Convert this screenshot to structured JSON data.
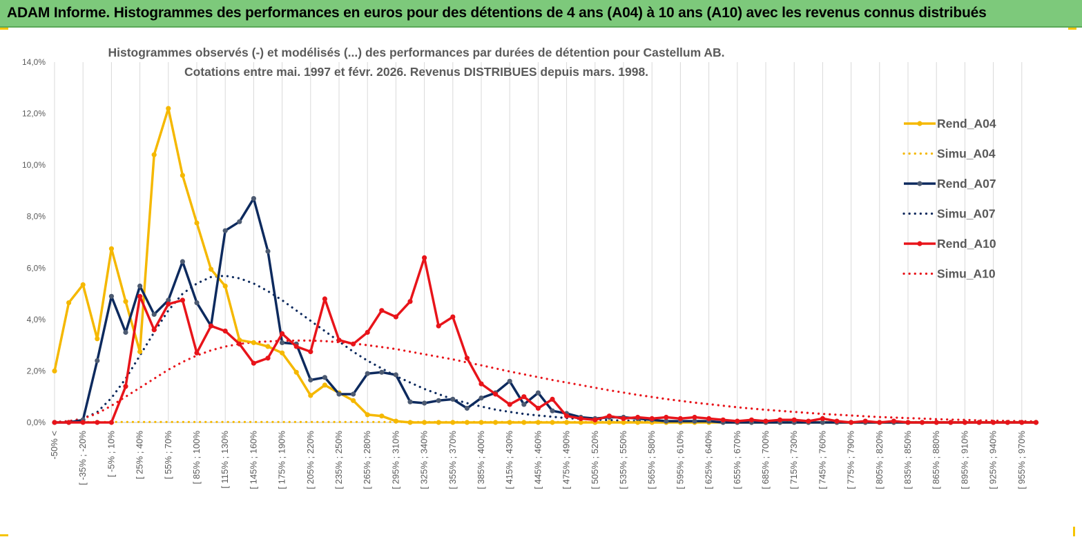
{
  "header": {
    "title": "ADAM Informe. Histogrammes des performances en euros pour des détentions de 4 ans (A04) à 10 ans (A10) avec les revenus connus distribués"
  },
  "chart_data": {
    "type": "line",
    "title_line1": "Histogrammes observés (-) et modélisés (...) des performances par durées de détention pour Castellum AB.",
    "title_line2": "Cotations entre mai. 1997 et févr. 2026. Revenus DISTRIBUES depuis mars. 1998.",
    "ylim": [
      0,
      14
    ],
    "yticks": [
      "0,0%",
      "2,0%",
      "4,0%",
      "6,0%",
      "8,0%",
      "10,0%",
      "12,0%",
      "14,0%"
    ],
    "grid": "vertical",
    "legend_position": "right",
    "x_tick_labels": [
      "-50% <",
      "[ -35% ; -20%",
      "[ -5% ; 10%",
      "[ 25% ; 40%",
      "[ 55% ; 70%",
      "[ 85% ; 100%",
      "[ 115% ; 130%",
      "[ 145% ; 160%",
      "[ 175% ; 190%",
      "[ 205% ; 220%",
      "[ 235% ; 250%",
      "[ 265% ; 280%",
      "[ 295% ; 310%",
      "[ 325% ; 340%",
      "[ 355% ; 370%",
      "[ 385% ; 400%",
      "[ 415% ; 430%",
      "[ 445% ; 460%",
      "[ 475% ; 490%",
      "[ 505% ; 520%",
      "[ 535% ; 550%",
      "[ 565% ; 580%",
      "[ 595% ; 610%",
      "[ 625% ; 640%",
      "[ 655% ; 670%",
      "[ 685% ; 700%",
      "[ 715% ; 730%",
      "[ 745% ; 760%",
      "[ 775% ; 790%",
      "[ 805% ; 820%",
      "[ 835% ; 850%",
      "[ 865% ; 880%",
      "[ 895% ; 910%",
      "[ 925% ; 940%",
      "[ 955% ; 970%"
    ],
    "num_points": 70,
    "series": [
      {
        "name": "Rend_A04",
        "style": "solid",
        "marker": true,
        "color": "#f5b800",
        "values": [
          2.0,
          4.65,
          5.35,
          3.25,
          6.75,
          4.7,
          2.75,
          10.4,
          12.2,
          9.6,
          7.75,
          5.95,
          5.3,
          3.2,
          3.1,
          2.95,
          2.7,
          1.95,
          1.05,
          1.45,
          1.15,
          0.85,
          0.3,
          0.25,
          0.05,
          0,
          0,
          0,
          0,
          0,
          0,
          0,
          0,
          0,
          0,
          0,
          0,
          0,
          0,
          0,
          0,
          0,
          0,
          0,
          0,
          0,
          0,
          0,
          0,
          0,
          0,
          0,
          0,
          0,
          0,
          0,
          0,
          0,
          0,
          0,
          0,
          0,
          0,
          0,
          0,
          0,
          0,
          0,
          0,
          0
        ]
      },
      {
        "name": "Simu_A04",
        "style": "dotted",
        "marker": false,
        "color": "#f5b800",
        "values": [
          0.02,
          0.02,
          0.02,
          0.02,
          0.02,
          0.02,
          0.02,
          0.02,
          0.02,
          0.02,
          0.02,
          0.02,
          0.02,
          0.02,
          0.02,
          0.02,
          0.02,
          0.02,
          0.02,
          0.02,
          0.02,
          0.02,
          0.02,
          0.02,
          0.02,
          0.02,
          0.02,
          0.02,
          0.02,
          0.02,
          0.02,
          0.02,
          0.02,
          0.02,
          0.02,
          0.02,
          0.02,
          0.02,
          0.02,
          0.02,
          0.02,
          0.02,
          0.02,
          0.02,
          0.02,
          0.02,
          0.02,
          0.02,
          0.02,
          0.02,
          0.02,
          0.02,
          0.02,
          0.02,
          0.02,
          0.02,
          0.02,
          0.02,
          0.02,
          0.02,
          0.02,
          0.02,
          0.02,
          0.02,
          0.02,
          0.02,
          0.02,
          0.02,
          0.02,
          0.02
        ]
      },
      {
        "name": "Rend_A07",
        "style": "solid",
        "marker": true,
        "color": "#0d2a5e",
        "values": [
          0,
          0,
          0.1,
          2.4,
          4.9,
          3.5,
          5.3,
          4.2,
          4.75,
          6.25,
          4.65,
          3.75,
          7.45,
          7.8,
          8.7,
          6.65,
          3.1,
          3.05,
          1.65,
          1.75,
          1.1,
          1.1,
          1.9,
          1.95,
          1.85,
          0.8,
          0.75,
          0.85,
          0.9,
          0.55,
          0.95,
          1.15,
          1.6,
          0.7,
          1.15,
          0.45,
          0.35,
          0.2,
          0.15,
          0.2,
          0.2,
          0.15,
          0.1,
          0.05,
          0.05,
          0.05,
          0.05,
          0,
          0,
          0,
          0,
          0,
          0,
          0,
          0,
          0,
          0,
          0,
          0,
          0,
          0,
          0,
          0,
          0,
          0,
          0,
          0,
          0,
          0,
          0
        ]
      },
      {
        "name": "Simu_A07",
        "style": "dotted",
        "marker": false,
        "color": "#0d2a5e",
        "values": [
          0.02,
          0.05,
          0.15,
          0.4,
          0.95,
          1.7,
          2.6,
          3.5,
          4.35,
          5.0,
          5.4,
          5.65,
          5.7,
          5.6,
          5.4,
          5.1,
          4.75,
          4.35,
          3.95,
          3.55,
          3.15,
          2.75,
          2.4,
          2.1,
          1.8,
          1.55,
          1.3,
          1.1,
          0.9,
          0.75,
          0.62,
          0.5,
          0.41,
          0.33,
          0.27,
          0.22,
          0.17,
          0.14,
          0.11,
          0.09,
          0.07,
          0.05,
          0.04,
          0.03,
          0.02,
          0.02,
          0.01,
          0.01,
          0.01,
          0.01,
          0.0,
          0,
          0,
          0,
          0,
          0,
          0,
          0,
          0,
          0,
          0,
          0,
          0,
          0,
          0,
          0,
          0,
          0,
          0,
          0
        ]
      },
      {
        "name": "Rend_A10",
        "style": "solid",
        "marker": true,
        "color": "#e8141a",
        "values": [
          0,
          0,
          0,
          0,
          0,
          1.4,
          4.9,
          3.6,
          4.6,
          4.75,
          2.7,
          3.75,
          3.55,
          3.05,
          2.3,
          2.5,
          3.45,
          2.95,
          2.75,
          4.8,
          3.2,
          3.05,
          3.5,
          4.35,
          4.1,
          4.7,
          6.4,
          3.75,
          4.1,
          2.5,
          1.5,
          1.1,
          0.7,
          1.0,
          0.55,
          0.9,
          0.25,
          0.15,
          0.1,
          0.25,
          0.15,
          0.2,
          0.15,
          0.2,
          0.15,
          0.2,
          0.15,
          0.1,
          0.05,
          0.1,
          0.05,
          0.1,
          0.1,
          0.05,
          0.15,
          0.05,
          0,
          0.05,
          0,
          0.05,
          0,
          0,
          0,
          0,
          0,
          0,
          0,
          0,
          0,
          0
        ]
      },
      {
        "name": "Simu_A10",
        "style": "dotted",
        "marker": false,
        "color": "#e8141a",
        "values": [
          0.01,
          0.05,
          0.15,
          0.35,
          0.65,
          1.0,
          1.35,
          1.7,
          2.05,
          2.35,
          2.6,
          2.8,
          2.95,
          3.05,
          3.12,
          3.15,
          3.17,
          3.18,
          3.18,
          3.16,
          3.12,
          3.07,
          3.0,
          2.93,
          2.85,
          2.75,
          2.65,
          2.55,
          2.45,
          2.33,
          2.22,
          2.1,
          1.98,
          1.87,
          1.76,
          1.65,
          1.55,
          1.45,
          1.35,
          1.25,
          1.16,
          1.07,
          0.99,
          0.91,
          0.84,
          0.77,
          0.71,
          0.65,
          0.59,
          0.54,
          0.49,
          0.45,
          0.41,
          0.37,
          0.33,
          0.3,
          0.27,
          0.24,
          0.21,
          0.19,
          0.17,
          0.15,
          0.13,
          0.11,
          0.1,
          0.08,
          0.07,
          0.06,
          0.05,
          0.04
        ]
      }
    ]
  }
}
